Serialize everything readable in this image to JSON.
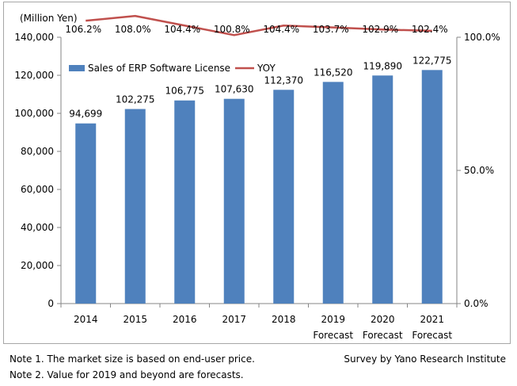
{
  "chart_data": {
    "type": "bar+line",
    "categories": [
      "2014",
      "2015",
      "2016",
      "2017",
      "2018",
      "2019",
      "2020",
      "2021"
    ],
    "category_sublabels": [
      "",
      "",
      "",
      "",
      "",
      "Forecast",
      "Forecast",
      "Forecast"
    ],
    "series": [
      {
        "name": "Sales of ERP Software License",
        "type": "bar",
        "axis": "left",
        "values": [
          94699,
          102275,
          106775,
          107630,
          112370,
          116520,
          119890,
          122775
        ],
        "labels": [
          "94,699",
          "102,275",
          "106,775",
          "107,630",
          "112,370",
          "116,520",
          "119,890",
          "122,775"
        ],
        "color": "#4f81bd"
      },
      {
        "name": "YOY",
        "type": "line",
        "axis": "right",
        "values": [
          106.2,
          108.0,
          104.4,
          100.8,
          104.4,
          103.7,
          102.9,
          102.4
        ],
        "labels": [
          "106.2%",
          "108.0%",
          "104.4%",
          "100.8%",
          "104.4%",
          "103.7%",
          "102.9%",
          "102.4%"
        ],
        "color": "#c0504d"
      }
    ],
    "y_left": {
      "unit_label": "(Million Yen)",
      "range": [
        0,
        140000
      ],
      "ticks": [
        0,
        20000,
        40000,
        60000,
        80000,
        100000,
        120000,
        140000
      ],
      "tick_labels": [
        "0",
        "20,000",
        "40,000",
        "60,000",
        "80,000",
        "100,000",
        "120,000",
        "140,000"
      ]
    },
    "y_right": {
      "range": [
        0,
        100
      ],
      "ticks": [
        0,
        50,
        100
      ],
      "tick_labels": [
        "0.0%",
        "50.0%",
        "100.0%"
      ]
    },
    "grid": false,
    "legend_position": "top-left"
  },
  "notes": [
    "Note 1.  The market size is based on end-user price.",
    "Note 2.  Value for 2019 and beyond are forecasts."
  ],
  "credit": "Survey by Yano Research Institute"
}
